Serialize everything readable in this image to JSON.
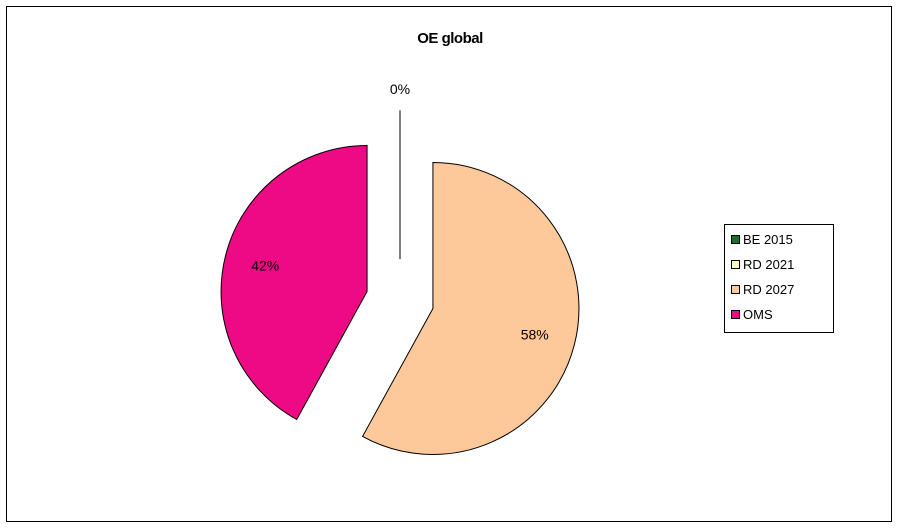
{
  "chart_data": {
    "type": "pie",
    "title": "OE global",
    "categories": [
      "BE 2015",
      "RD 2021",
      "RD 2027",
      "OMS"
    ],
    "values": [
      0,
      0,
      58,
      42
    ],
    "labels": [
      "0%",
      "",
      "58%",
      "42%"
    ],
    "colors": [
      "#1e6b2e",
      "#ffffcc",
      "#fdc89a",
      "#ee0a85"
    ],
    "exploded": true,
    "legend_position": "right"
  }
}
